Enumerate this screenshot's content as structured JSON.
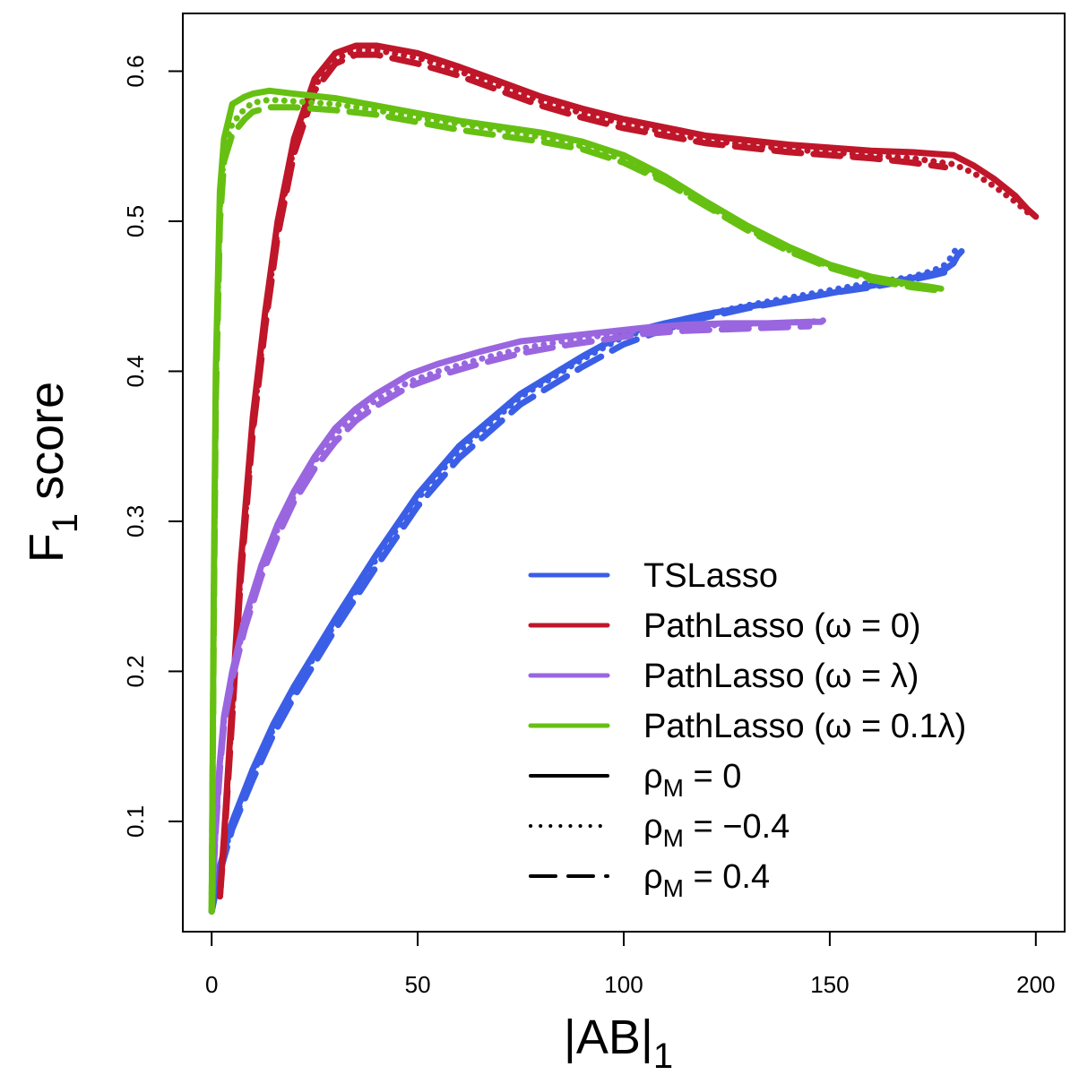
{
  "chart_data": {
    "type": "line",
    "xlabel": "|AB|",
    "xlabel_sub": "1",
    "ylabel": "F",
    "ylabel_sub": "1",
    "ylabel_tail": " score",
    "xlim": [
      -7,
      207
    ],
    "ylim": [
      0.0265,
      0.6385
    ],
    "xticks": [
      0,
      50,
      100,
      150,
      200
    ],
    "yticks": [
      0.1,
      0.2,
      0.3,
      0.4,
      0.5,
      0.6
    ],
    "grid": false,
    "legend": {
      "placement": "bottom-right",
      "items": [
        {
          "kind": "color",
          "color": "#3B5EE6",
          "text": "TSLasso"
        },
        {
          "kind": "color",
          "color": "#C0162A",
          "text": "PathLasso (ω = 0)"
        },
        {
          "kind": "color",
          "color": "#9966E0",
          "text": "PathLasso (ω = λ)"
        },
        {
          "kind": "color",
          "color": "#66C012",
          "text": "PathLasso (ω = 0.1λ)"
        },
        {
          "kind": "style",
          "style": "solid",
          "text_pre": "ρ",
          "text_sub": "M",
          "text_post": " = 0"
        },
        {
          "kind": "style",
          "style": "dotted",
          "text_pre": "ρ",
          "text_sub": "M",
          "text_post": " = −0.4"
        },
        {
          "kind": "style",
          "style": "dashed",
          "text_pre": "ρ",
          "text_sub": "M",
          "text_post": " = 0.4"
        }
      ]
    },
    "series": [
      {
        "method": "TSLasso",
        "rho": "0",
        "style": "solid",
        "color": "#3B5EE6",
        "x": [
          0,
          2,
          5,
          10,
          15,
          20,
          30,
          40,
          50,
          60,
          75,
          90,
          100,
          110,
          120,
          130,
          140,
          150,
          160,
          170,
          175,
          178,
          180,
          181,
          182
        ],
        "y": [
          0.04,
          0.07,
          0.1,
          0.135,
          0.165,
          0.19,
          0.235,
          0.278,
          0.318,
          0.35,
          0.385,
          0.41,
          0.425,
          0.432,
          0.438,
          0.443,
          0.447,
          0.452,
          0.457,
          0.462,
          0.465,
          0.468,
          0.472,
          0.477,
          0.48
        ]
      },
      {
        "method": "TSLasso",
        "rho": "-0.4",
        "style": "dotted",
        "color": "#3B5EE6",
        "x": [
          0,
          2,
          5,
          10,
          15,
          20,
          30,
          40,
          50,
          60,
          75,
          90,
          100,
          110,
          120,
          130,
          140,
          150,
          160,
          170,
          175,
          178,
          180,
          181
        ],
        "y": [
          0.04,
          0.068,
          0.098,
          0.132,
          0.162,
          0.188,
          0.232,
          0.275,
          0.315,
          0.347,
          0.383,
          0.408,
          0.423,
          0.431,
          0.438,
          0.444,
          0.449,
          0.454,
          0.459,
          0.463,
          0.467,
          0.471,
          0.478,
          0.484
        ]
      },
      {
        "method": "TSLasso",
        "rho": "0.4",
        "style": "dashed",
        "color": "#3B5EE6",
        "x": [
          0,
          2,
          5,
          10,
          15,
          20,
          30,
          40,
          50,
          60,
          75,
          90,
          100,
          110,
          120,
          130,
          140,
          150,
          160,
          170,
          175,
          178,
          180
        ],
        "y": [
          0.04,
          0.066,
          0.095,
          0.128,
          0.158,
          0.183,
          0.228,
          0.27,
          0.31,
          0.342,
          0.378,
          0.403,
          0.418,
          0.428,
          0.436,
          0.442,
          0.447,
          0.452,
          0.456,
          0.461,
          0.464,
          0.466,
          0.468
        ]
      },
      {
        "method": "PathLasso (ω = 0)",
        "rho": "0",
        "style": "solid",
        "color": "#C0162A",
        "x": [
          2,
          3,
          5,
          7,
          10,
          13,
          16,
          20,
          25,
          30,
          35,
          40,
          50,
          60,
          70,
          80,
          90,
          100,
          120,
          140,
          160,
          170,
          180,
          185,
          190,
          195,
          198,
          200
        ],
        "y": [
          0.05,
          0.09,
          0.18,
          0.27,
          0.37,
          0.44,
          0.5,
          0.555,
          0.595,
          0.612,
          0.617,
          0.617,
          0.612,
          0.603,
          0.593,
          0.583,
          0.575,
          0.568,
          0.557,
          0.551,
          0.547,
          0.546,
          0.544,
          0.537,
          0.528,
          0.517,
          0.508,
          0.503
        ]
      },
      {
        "method": "PathLasso (ω = 0)",
        "rho": "-0.4",
        "style": "dotted",
        "color": "#C0162A",
        "x": [
          2,
          3,
          5,
          7,
          10,
          13,
          16,
          20,
          25,
          30,
          35,
          40,
          50,
          60,
          70,
          80,
          90,
          100,
          120,
          140,
          160,
          170,
          180,
          185,
          190,
          195,
          198,
          200
        ],
        "y": [
          0.05,
          0.088,
          0.175,
          0.265,
          0.365,
          0.435,
          0.495,
          0.55,
          0.59,
          0.608,
          0.614,
          0.614,
          0.609,
          0.6,
          0.59,
          0.58,
          0.572,
          0.565,
          0.554,
          0.548,
          0.544,
          0.542,
          0.538,
          0.532,
          0.523,
          0.513,
          0.506,
          0.504
        ]
      },
      {
        "method": "PathLasso (ω = 0)",
        "rho": "0.4",
        "style": "dashed",
        "color": "#C0162A",
        "x": [
          2,
          3,
          5,
          7,
          10,
          13,
          16,
          20,
          25,
          30,
          35,
          40,
          50,
          60,
          70,
          80,
          90,
          100,
          120,
          140,
          160,
          170,
          178
        ],
        "y": [
          0.05,
          0.085,
          0.17,
          0.26,
          0.36,
          0.43,
          0.49,
          0.545,
          0.587,
          0.605,
          0.611,
          0.611,
          0.605,
          0.597,
          0.587,
          0.577,
          0.569,
          0.562,
          0.552,
          0.546,
          0.542,
          0.539,
          0.536
        ]
      },
      {
        "method": "PathLasso (ω = λ)",
        "rho": "0",
        "style": "solid",
        "color": "#9966E0",
        "x": [
          0,
          1,
          2,
          3,
          5,
          8,
          12,
          16,
          20,
          25,
          30,
          35,
          40,
          48,
          55,
          65,
          75,
          85,
          95,
          105,
          115,
          125,
          135,
          145,
          148
        ],
        "y": [
          0.04,
          0.1,
          0.14,
          0.17,
          0.2,
          0.235,
          0.27,
          0.298,
          0.32,
          0.343,
          0.362,
          0.375,
          0.385,
          0.398,
          0.405,
          0.413,
          0.42,
          0.423,
          0.426,
          0.429,
          0.431,
          0.432,
          0.432,
          0.433,
          0.433
        ]
      },
      {
        "method": "PathLasso (ω = λ)",
        "rho": "-0.4",
        "style": "dotted",
        "color": "#9966E0",
        "x": [
          0,
          1,
          2,
          3,
          5,
          8,
          12,
          16,
          20,
          25,
          30,
          35,
          40,
          48,
          55,
          65,
          75,
          85,
          95,
          105,
          115,
          125,
          135,
          145,
          149
        ],
        "y": [
          0.04,
          0.098,
          0.138,
          0.168,
          0.198,
          0.232,
          0.267,
          0.295,
          0.317,
          0.34,
          0.358,
          0.371,
          0.381,
          0.393,
          0.4,
          0.408,
          0.415,
          0.42,
          0.424,
          0.428,
          0.43,
          0.431,
          0.432,
          0.433,
          0.434
        ]
      },
      {
        "method": "PathLasso (ω = λ)",
        "rho": "0.4",
        "style": "dashed",
        "color": "#9966E0",
        "x": [
          0,
          1,
          2,
          3,
          5,
          8,
          12,
          16,
          20,
          25,
          30,
          35,
          40,
          48,
          55,
          65,
          75,
          85,
          95,
          105,
          115,
          125,
          135,
          145
        ],
        "y": [
          0.04,
          0.095,
          0.135,
          0.165,
          0.195,
          0.228,
          0.263,
          0.29,
          0.313,
          0.335,
          0.353,
          0.367,
          0.377,
          0.39,
          0.397,
          0.405,
          0.412,
          0.417,
          0.421,
          0.425,
          0.427,
          0.428,
          0.429,
          0.43
        ]
      },
      {
        "method": "PathLasso (ω = 0.1λ)",
        "rho": "0",
        "style": "solid",
        "color": "#66C012",
        "x": [
          0,
          0.5,
          1,
          2,
          3,
          5,
          8,
          10,
          14,
          20,
          30,
          40,
          50,
          60,
          70,
          80,
          90,
          100,
          110,
          120,
          130,
          140,
          150,
          160,
          170,
          175,
          177
        ],
        "y": [
          0.04,
          0.25,
          0.4,
          0.52,
          0.555,
          0.578,
          0.583,
          0.585,
          0.587,
          0.585,
          0.582,
          0.577,
          0.572,
          0.567,
          0.563,
          0.559,
          0.553,
          0.544,
          0.53,
          0.513,
          0.497,
          0.483,
          0.471,
          0.463,
          0.458,
          0.456,
          0.455
        ]
      },
      {
        "method": "PathLasso (ω = 0.1λ)",
        "rho": "-0.4",
        "style": "dotted",
        "color": "#66C012",
        "x": [
          0,
          0.5,
          1,
          2,
          3,
          5,
          8,
          10,
          14,
          20,
          30,
          40,
          50,
          60,
          70,
          80,
          90,
          100,
          110,
          120,
          130,
          140,
          150,
          160,
          170,
          176
        ],
        "y": [
          0.04,
          0.24,
          0.39,
          0.51,
          0.548,
          0.565,
          0.575,
          0.579,
          0.581,
          0.58,
          0.578,
          0.574,
          0.569,
          0.565,
          0.561,
          0.556,
          0.55,
          0.541,
          0.528,
          0.511,
          0.495,
          0.481,
          0.47,
          0.462,
          0.457,
          0.455
        ]
      },
      {
        "method": "PathLasso (ω = 0.1λ)",
        "rho": "0.4",
        "style": "dashed",
        "color": "#66C012",
        "x": [
          0,
          0.5,
          1,
          2,
          3,
          5,
          8,
          10,
          14,
          20,
          30,
          40,
          50,
          60,
          70,
          80,
          90,
          100,
          110,
          120,
          130,
          140,
          150,
          160,
          170,
          176
        ],
        "y": [
          0.04,
          0.23,
          0.38,
          0.5,
          0.54,
          0.558,
          0.568,
          0.573,
          0.576,
          0.576,
          0.574,
          0.571,
          0.566,
          0.561,
          0.557,
          0.553,
          0.548,
          0.539,
          0.526,
          0.51,
          0.494,
          0.48,
          0.469,
          0.461,
          0.456,
          0.454
        ]
      }
    ]
  }
}
